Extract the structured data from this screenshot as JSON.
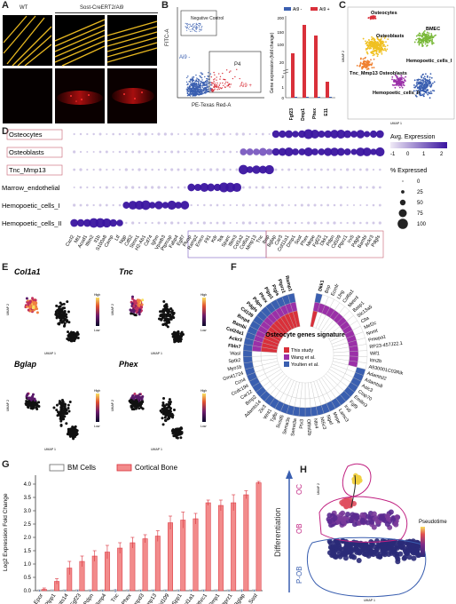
{
  "panelA": {
    "label": "A",
    "wt": "WT",
    "group": "Sost-CreERT2/Ai9"
  },
  "panelB": {
    "label": "B",
    "negative_control": "Negative Control",
    "ai9_neg": "Ai9 -",
    "ai9_pos": "Ai9 +",
    "gate": "P4",
    "yaxis": "FITC-A",
    "xaxis": "PE-Texas Red-A",
    "legend_neg": "Ai9 -",
    "legend_pos": "Ai9 +",
    "bar_ylabel": "Gene expression (fold change)",
    "bar_genes": [
      "Fgf23",
      "Dmp1",
      "Phex",
      "E11"
    ],
    "bar_yticks": [
      "0",
      "1",
      "2",
      "20",
      "100",
      "150",
      "200"
    ]
  },
  "panelC": {
    "label": "C",
    "clusters": [
      "Osteocytes",
      "Osteoblasts",
      "BMEC",
      "Tnc_Mmp13 Osteoblasts",
      "Hemopoetic_cells_I",
      "Hemopoetic_cells_II"
    ],
    "xaxis": "UMAP 1",
    "yaxis": "UMAP 2"
  },
  "panelD": {
    "label": "D",
    "rows": [
      "Osteocytes",
      "Osteoblasts",
      "Tnc_Mmp13",
      "Marrow_endothelial",
      "Hemopoetic_cells_I",
      "Hemopoetic_cells_II"
    ],
    "genes": [
      "Cxcl2",
      "Mt1",
      "Acod1",
      "Ifitm2",
      "Il1b",
      "S100a8",
      "Camp",
      "Ltf",
      "Ngp",
      "Cd52",
      "Stmn1",
      "H2-Ab1",
      "Cd74",
      "Ighm",
      "Vpreb3",
      "Ptprcap",
      "Fabp4",
      "Egfl7",
      "Plvap",
      "Ramp2",
      "Emcn",
      "Flt1",
      "Kdr",
      "Tek",
      "Sparc",
      "Ifitm3",
      "Col1a2",
      "Col5a1",
      "Mmp13",
      "Tnc",
      "Ibsp",
      "Bglap",
      "Car3",
      "Col11a1",
      "Dmp1",
      "Sost",
      "Phex",
      "Mepe",
      "Fgf23",
      "Dkk1",
      "Pdpn",
      "Cd109",
      "Ptprz1",
      "Irx5",
      "Pdgfa",
      "Bambi",
      "Ackr3",
      "Pdgfs"
    ],
    "legend_title1": "Avg. Expression",
    "legend_scale": [
      "-1",
      "0",
      "1",
      "2"
    ],
    "legend_title2": "% Expressed",
    "legend_sizes": [
      "0",
      "25",
      "50",
      "75",
      "100"
    ]
  },
  "panelE": {
    "label": "E",
    "genes": [
      "Col1a1",
      "Tnc",
      "Bglap",
      "Phex"
    ],
    "high": "High",
    "low": "Low",
    "xaxis": "UMAP 1",
    "yaxis": "UMAP 2"
  },
  "panelF": {
    "label": "F",
    "center_title": "Osteocyte genes signature",
    "legend": [
      "This study",
      "Wang et al.",
      "Youlten et al."
    ],
    "genes": [
      "Dkk1",
      "Bsp",
      "Ecmfr",
      "Lfng",
      "Col6a1",
      "Metrnl",
      "Basp1",
      "Slc13a5",
      "Clta",
      "Mef2c",
      "Nnmt",
      "Pmepa1",
      "RP23-457J22.1",
      "Wif1",
      "Itm2b",
      "A930001C03Rik",
      "Adamtsl2",
      "Adamts8",
      "Asic3",
      "Ctap70",
      "Emilin3",
      "Fgf9",
      "Irx6",
      "Lamc3",
      "Mepe",
      "Ngef",
      "Nt5c3",
      "Ntn4",
      "Olfml2b",
      "Ptx3",
      "Sema3a",
      "Sema3e",
      "Susd5",
      "Tgfbi",
      "Wnt1",
      "Zic3",
      "Adamts14",
      "Bmp2",
      "Car12",
      "Ccdc194",
      "Ccn4",
      "Gm41724",
      "Myo1b",
      "Sptk2",
      "Wasl",
      "Fbln7",
      "Ackr3",
      "Col24a1",
      "Bambi",
      "Bmp4",
      "Cd109",
      "Pdgfs",
      "Pdpn",
      "Phex",
      "Plpp1",
      "Ptgis",
      "Ptprz1",
      "Ramp1"
    ]
  },
  "panelG": {
    "label": "G",
    "legend_bm": "BM Cells",
    "legend_cb": "Cortical Bone",
    "ylabel": "Log2 Expression Fold Change",
    "yticks": [
      "0.0",
      "0.5",
      "1.0",
      "1.5",
      "2.0",
      "2.5",
      "3.0",
      "3.5",
      "4.0"
    ],
    "ylim": [
      0,
      4.2
    ]
  },
  "panelH": {
    "label": "H",
    "axis": "Differentiation",
    "stages": [
      "OC",
      "OB",
      "P-OB"
    ],
    "pseudotime": "Pseudotime",
    "xaxis": "UMAP 1",
    "yaxis": "UMAP 2"
  },
  "chart_data": {
    "type": "bar",
    "categories": [
      "Epor",
      "Plpp1",
      "Adamts14",
      "Fgf23",
      "Pdpn",
      "Bmp4",
      "Tnc",
      "Phex",
      "Smpd3",
      "Mmp13",
      "Cd109",
      "Spp1",
      "Col1a1",
      "Cthrc1",
      "Dmp1",
      "Ptprz1",
      "Bglap",
      "Sost"
    ],
    "series": [
      {
        "name": "BM Cells",
        "values": [
          0,
          0,
          0,
          0,
          0,
          0,
          0,
          0,
          0,
          0,
          0,
          0,
          0,
          0,
          0,
          0,
          0,
          0
        ]
      },
      {
        "name": "Cortical Bone",
        "values": [
          0.05,
          0.35,
          0.85,
          1.1,
          1.3,
          1.45,
          1.6,
          1.8,
          1.95,
          2.05,
          2.55,
          2.65,
          2.7,
          3.3,
          3.2,
          3.3,
          3.6,
          4.05
        ]
      }
    ],
    "errors": [
      0.05,
      0.1,
      0.25,
      0.2,
      0.2,
      0.25,
      0.2,
      0.2,
      0.15,
      0.2,
      0.25,
      0.3,
      0.2,
      0.1,
      0.2,
      0.3,
      0.15,
      0.05
    ],
    "bm_errors": [
      0.1,
      0.05,
      0.1,
      0.1,
      0.12,
      0.1,
      0.2,
      0.08,
      0.1,
      0.1,
      0.1,
      0.1,
      0.1,
      0.1,
      0.08,
      0.1,
      0.15,
      0.1
    ],
    "ylabel": "Log2 Expression Fold Change",
    "ylim": [
      0,
      4.2
    ]
  },
  "colors": {
    "red": "#d9303a",
    "blue": "#3a5fb0",
    "purple": "#6b2aa8",
    "yellow": "#f0d000",
    "orange": "#f08030",
    "green": "#78b838",
    "navy": "#2a2a78"
  }
}
